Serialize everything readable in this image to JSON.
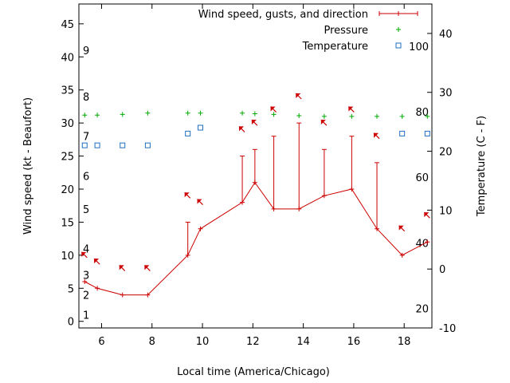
{
  "chart_data": {
    "type": "line",
    "title": "",
    "xlabel": "Local time (America/Chicago)",
    "ylabel_left": "Wind speed (kt - Beaufort)",
    "ylabel_right": "Temperature (C - F)",
    "xlim": [
      5.1,
      19.1
    ],
    "ylim_left": [
      -1,
      48
    ],
    "ylim_right_celsius": [
      -10,
      45
    ],
    "x_ticks": [
      6,
      8,
      10,
      12,
      14,
      16,
      18
    ],
    "y_ticks_left": [
      0,
      5,
      10,
      15,
      20,
      25,
      30,
      35,
      40,
      45
    ],
    "y_ticks_right": [
      -10,
      0,
      10,
      20,
      30,
      40
    ],
    "beaufort_labels": [
      {
        "label": "1",
        "y": 1
      },
      {
        "label": "2",
        "y": 4
      },
      {
        "label": "3",
        "y": 7
      },
      {
        "label": "4",
        "y": 11
      },
      {
        "label": "5",
        "y": 17
      },
      {
        "label": "6",
        "y": 22
      },
      {
        "label": "7",
        "y": 28
      },
      {
        "label": "8",
        "y": 34
      },
      {
        "label": "9",
        "y": 41
      }
    ],
    "fahrenheit_labels": [
      {
        "label": "20",
        "y_c": -6.7
      },
      {
        "label": "40",
        "y_c": 4.4
      },
      {
        "label": "60",
        "y_c": 15.6
      },
      {
        "label": "80",
        "y_c": 26.7
      },
      {
        "label": "100",
        "y_c": 37.8
      }
    ],
    "legend": {
      "position": "top-right",
      "entries": [
        "Wind speed, gusts, and direction",
        "Pressure",
        "Temperature"
      ]
    },
    "series": [
      {
        "name": "Wind speed, gusts, and direction",
        "color": "#cc0000",
        "x": [
          5.33,
          5.83,
          6.83,
          7.83,
          9.42,
          9.92,
          11.58,
          12.08,
          12.83,
          13.83,
          14.83,
          15.92,
          16.92,
          17.92,
          18.92
        ],
        "values": [
          6,
          5,
          4,
          4,
          10,
          14,
          18,
          21,
          17,
          17,
          19,
          20,
          14,
          10,
          12
        ],
        "gusts": [
          null,
          null,
          null,
          null,
          15,
          null,
          25,
          26,
          28,
          30,
          26,
          28,
          24,
          null,
          null
        ],
        "direction_arrow_y": [
          10,
          9,
          8,
          8,
          19,
          18,
          29,
          30,
          32,
          34,
          30,
          32,
          28,
          14,
          16
        ]
      },
      {
        "name": "Pressure",
        "color": "#00aa00",
        "x": [
          5.33,
          5.83,
          6.83,
          7.83,
          9.42,
          9.92,
          11.58,
          12.08,
          12.83,
          13.83,
          14.83,
          15.92,
          16.92,
          17.92,
          18.92
        ],
        "values": [
          31.2,
          31.2,
          31.3,
          31.5,
          31.5,
          31.5,
          31.5,
          31.4,
          31.3,
          31.1,
          31.0,
          31.0,
          31.0,
          31.0,
          31.0
        ]
      },
      {
        "name": "Temperature",
        "color": "#1f6fbf",
        "x": [
          5.33,
          5.83,
          6.83,
          7.83,
          9.42,
          9.92,
          17.92,
          18.92
        ],
        "values": [
          21,
          21,
          21,
          21,
          23,
          24,
          23,
          23
        ]
      }
    ]
  }
}
